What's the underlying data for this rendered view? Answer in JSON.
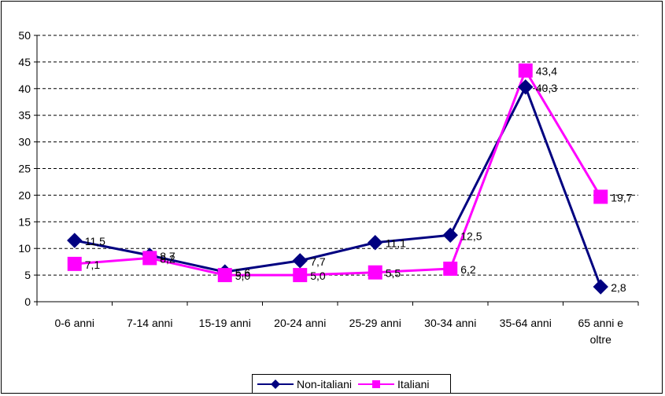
{
  "chart_data": {
    "type": "line",
    "categories": [
      "0-6 anni",
      "7-14 anni",
      "15-19 anni",
      "20-24 anni",
      "25-29 anni",
      "30-34 anni",
      "35-64 anni",
      "65 anni e oltre"
    ],
    "category_lines": [
      [
        "0-6 anni"
      ],
      [
        "7-14 anni"
      ],
      [
        "15-19 anni"
      ],
      [
        "20-24 anni"
      ],
      [
        "25-29 anni"
      ],
      [
        "30-34 anni"
      ],
      [
        "35-64 anni"
      ],
      [
        "65 anni e",
        "oltre"
      ]
    ],
    "y_ticks": [
      "0",
      "5",
      "10",
      "15",
      "20",
      "25",
      "30",
      "35",
      "40",
      "45",
      "50"
    ],
    "ylim": [
      0,
      50
    ],
    "grid": "horizontal dashed",
    "legend_position": "bottom",
    "series": [
      {
        "name": "Non-italiani",
        "color": "#000080",
        "marker": "diamond",
        "values": [
          11.5,
          8.7,
          5.6,
          7.7,
          11.1,
          12.5,
          40.3,
          2.8
        ],
        "labels": [
          "11,5",
          "8,7",
          "5,6",
          "7,7",
          "11,1",
          "12,5",
          "40,3",
          "2,8"
        ]
      },
      {
        "name": "Italiani",
        "color": "#FF00FF",
        "marker": "square",
        "values": [
          7.1,
          8.2,
          5.0,
          5.0,
          5.5,
          6.2,
          43.4,
          19.7
        ],
        "labels": [
          "7,1",
          "8,2",
          "5,0",
          "5,0",
          "5,5",
          "6,2",
          "43,4",
          "19,7"
        ]
      }
    ]
  }
}
